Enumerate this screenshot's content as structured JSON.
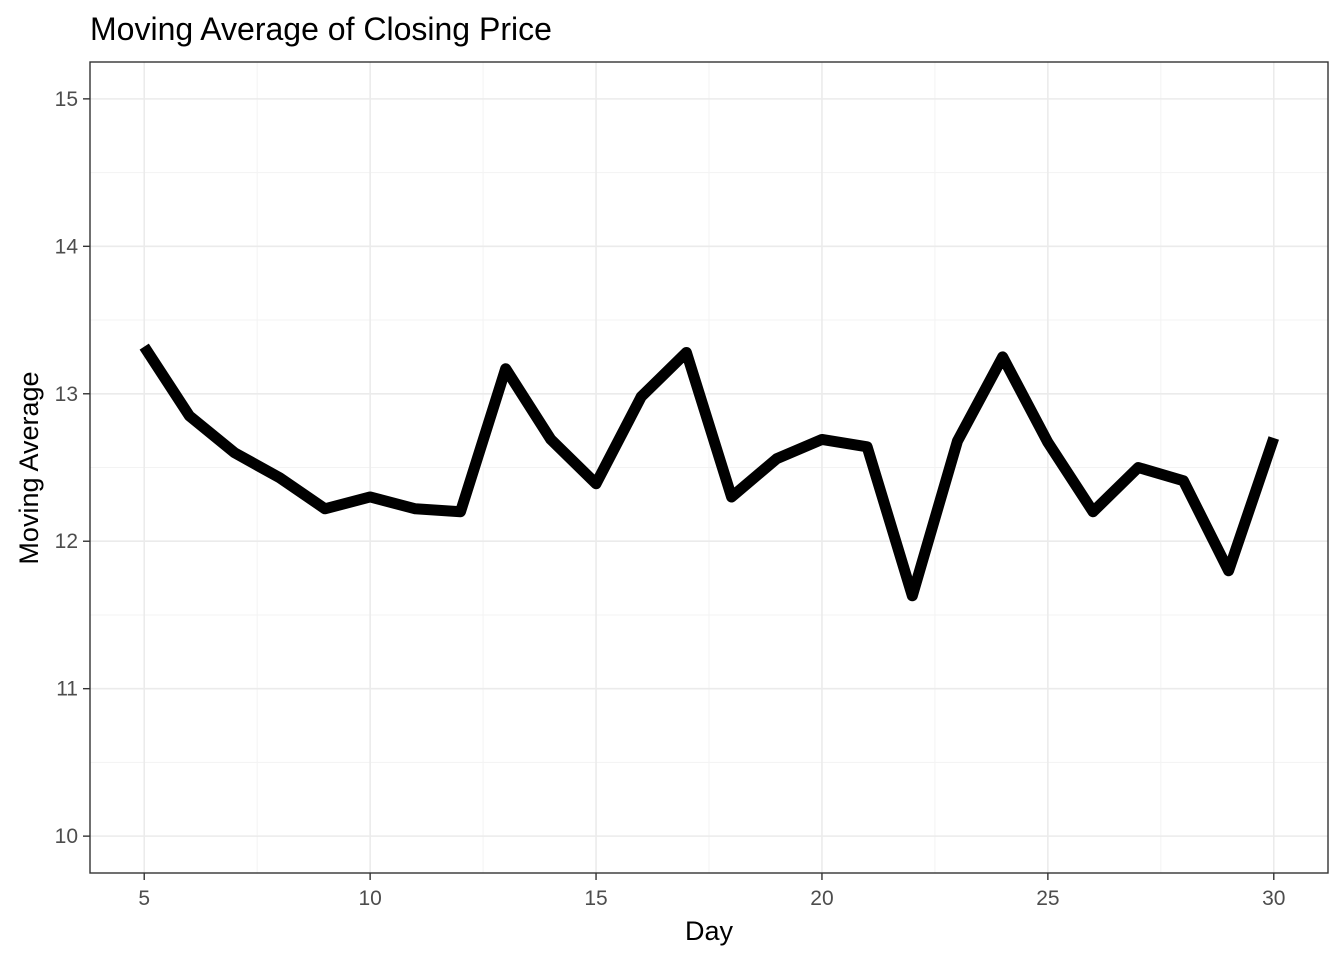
{
  "chart_data": {
    "type": "line",
    "title": "Moving Average of Closing Price",
    "xlabel": "Day",
    "ylabel": "Moving Average",
    "xlim": [
      3.8,
      31.2
    ],
    "ylim": [
      9.75,
      15.25
    ],
    "x_ticks": [
      5,
      10,
      15,
      20,
      25,
      30
    ],
    "y_ticks": [
      10,
      11,
      12,
      13,
      14,
      15
    ],
    "x_tick_labels": [
      "5",
      "10",
      "15",
      "20",
      "25",
      "30"
    ],
    "y_tick_labels": [
      "10",
      "11",
      "12",
      "13",
      "14",
      "15"
    ],
    "grid": true,
    "legend": "none",
    "line_color": "#000000",
    "series": [
      {
        "x": [
          5,
          6,
          7,
          8,
          9,
          10,
          11,
          12,
          13,
          14,
          15,
          16,
          17,
          18,
          19,
          20,
          21,
          22,
          23,
          24,
          25,
          26,
          27,
          28,
          29,
          30
        ],
        "values": [
          13.32,
          12.85,
          12.6,
          12.43,
          12.22,
          12.3,
          12.22,
          12.2,
          13.17,
          12.69,
          12.39,
          12.98,
          13.28,
          12.3,
          12.56,
          12.69,
          12.64,
          11.63,
          12.68,
          13.25,
          12.67,
          12.2,
          12.5,
          12.41,
          11.8,
          12.7
        ]
      }
    ]
  }
}
